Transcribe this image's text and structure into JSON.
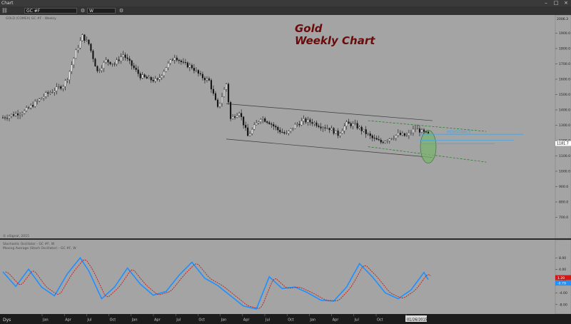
{
  "window": {
    "title": "Chart"
  },
  "toolbar": {
    "symbol": "GC #F",
    "interval": "W"
  },
  "header": {
    "price_legend": "GOLD (COMEX) GC #F · Weekly",
    "osc_legend_1": "Stochastic Oscillator - GC #F, W",
    "osc_legend_2": "Moving Average (Stoch Oscillator) - GC #F, W"
  },
  "watermark": "© eSignal, 2015",
  "corner_label": "Dys",
  "annotations": {
    "title_line1": "Gold",
    "title_line2": "Weekly Chart",
    "resistance": "RESISTANCE"
  },
  "colors": {
    "background": "#a4a4a4",
    "title": "#6b0a0a",
    "resistance_lines": "#4aa3df",
    "channel_green": "#1b7a1b",
    "channel_gray": "#3c3c3c",
    "stoch_k": "#1e90ff",
    "stoch_d": "#c41a1a",
    "ellipse_fill": "#7bb36c",
    "last_price_bg": "#ffffff",
    "osc_k_badge": "#1e90ff",
    "osc_d_badge": "#d01818"
  },
  "chart_data": {
    "type": "candlestick",
    "title": "Gold Weekly Chart",
    "price_axis": {
      "ylim": [
        600,
        2000
      ],
      "ticks": [
        700,
        800,
        900,
        1000,
        1100,
        1200,
        1300,
        1400,
        1500,
        1600,
        1700,
        1800,
        1900
      ],
      "tick_labels": [
        "700.0",
        "800.0",
        "900.0",
        "1000.0",
        "1100.0",
        "1200.0",
        "1300.0",
        "1400.0",
        "1500.0",
        "1600.0",
        "1700.0",
        "1800.0",
        "1900.0"
      ],
      "top_label": "2006.3",
      "last_price": 1181.7,
      "last_price_label": "1181.7"
    },
    "time_axis": {
      "labels": [
        "Jan",
        "Apr",
        "Jul",
        "Oct",
        "Jan",
        "Apr",
        "Jul",
        "Oct",
        "Jan",
        "Apr",
        "Jul",
        "Oct",
        "Jan",
        "Apr",
        "Jul",
        "Oct",
        "01/26/2015"
      ],
      "grid": false
    },
    "price_anchors": {
      "weeks": [
        0,
        10,
        20,
        28,
        30,
        34,
        37,
        40,
        44,
        48,
        52,
        56,
        60,
        64,
        68,
        72,
        76,
        80,
        84,
        88,
        92,
        96,
        100,
        104,
        106,
        110,
        114,
        117,
        120,
        124,
        128,
        132,
        136,
        140,
        144,
        148,
        152,
        156,
        160,
        164,
        168,
        172,
        176,
        180,
        184,
        188,
        192,
        196,
        198
      ],
      "closes": [
        1350,
        1390,
        1500,
        1560,
        1610,
        1780,
        1880,
        1830,
        1650,
        1720,
        1700,
        1760,
        1690,
        1620,
        1600,
        1590,
        1680,
        1750,
        1700,
        1680,
        1620,
        1590,
        1410,
        1570,
        1340,
        1390,
        1230,
        1290,
        1350,
        1320,
        1270,
        1240,
        1300,
        1330,
        1320,
        1295,
        1280,
        1240,
        1310,
        1300,
        1260,
        1215,
        1190,
        1215,
        1240,
        1230,
        1280,
        1250,
        1240
      ],
      "note": ""
    },
    "oscillator": {
      "name": "Stochastic Oscillator",
      "ylim": [
        -10,
        10
      ],
      "ticks": [
        -8,
        -4,
        0,
        4,
        8
      ],
      "tick_labels": [
        "-8.00",
        "-4.00",
        "0.00",
        "4.00",
        "8.00"
      ],
      "k_anchors_weeks": [
        0,
        6,
        12,
        18,
        24,
        30,
        36,
        40,
        46,
        52,
        58,
        64,
        70,
        76,
        82,
        88,
        94,
        100,
        106,
        112,
        118,
        124,
        130,
        136,
        142,
        148,
        154,
        160,
        166,
        172,
        178,
        184,
        190,
        196,
        198
      ],
      "k_values": [
        3.2,
        -1.8,
        4.1,
        -2.0,
        -5.0,
        2.5,
        8.0,
        3.5,
        -6.0,
        -2.0,
        4.5,
        -1.0,
        -4.8,
        -3.5,
        2.0,
        6.5,
        1.0,
        -1.5,
        -5.0,
        -8.5,
        -9.5,
        1.5,
        -2.5,
        -2.0,
        -4.0,
        -6.5,
        -6.8,
        -2.0,
        6.0,
        1.5,
        -4.0,
        -6.0,
        -3.0,
        3.0,
        0.5
      ],
      "last_k": 1.2,
      "last_k_label": "1.20",
      "last_d_label": "-0.79"
    },
    "resistance_levels": [
      1241,
      1203,
      1180
    ]
  }
}
